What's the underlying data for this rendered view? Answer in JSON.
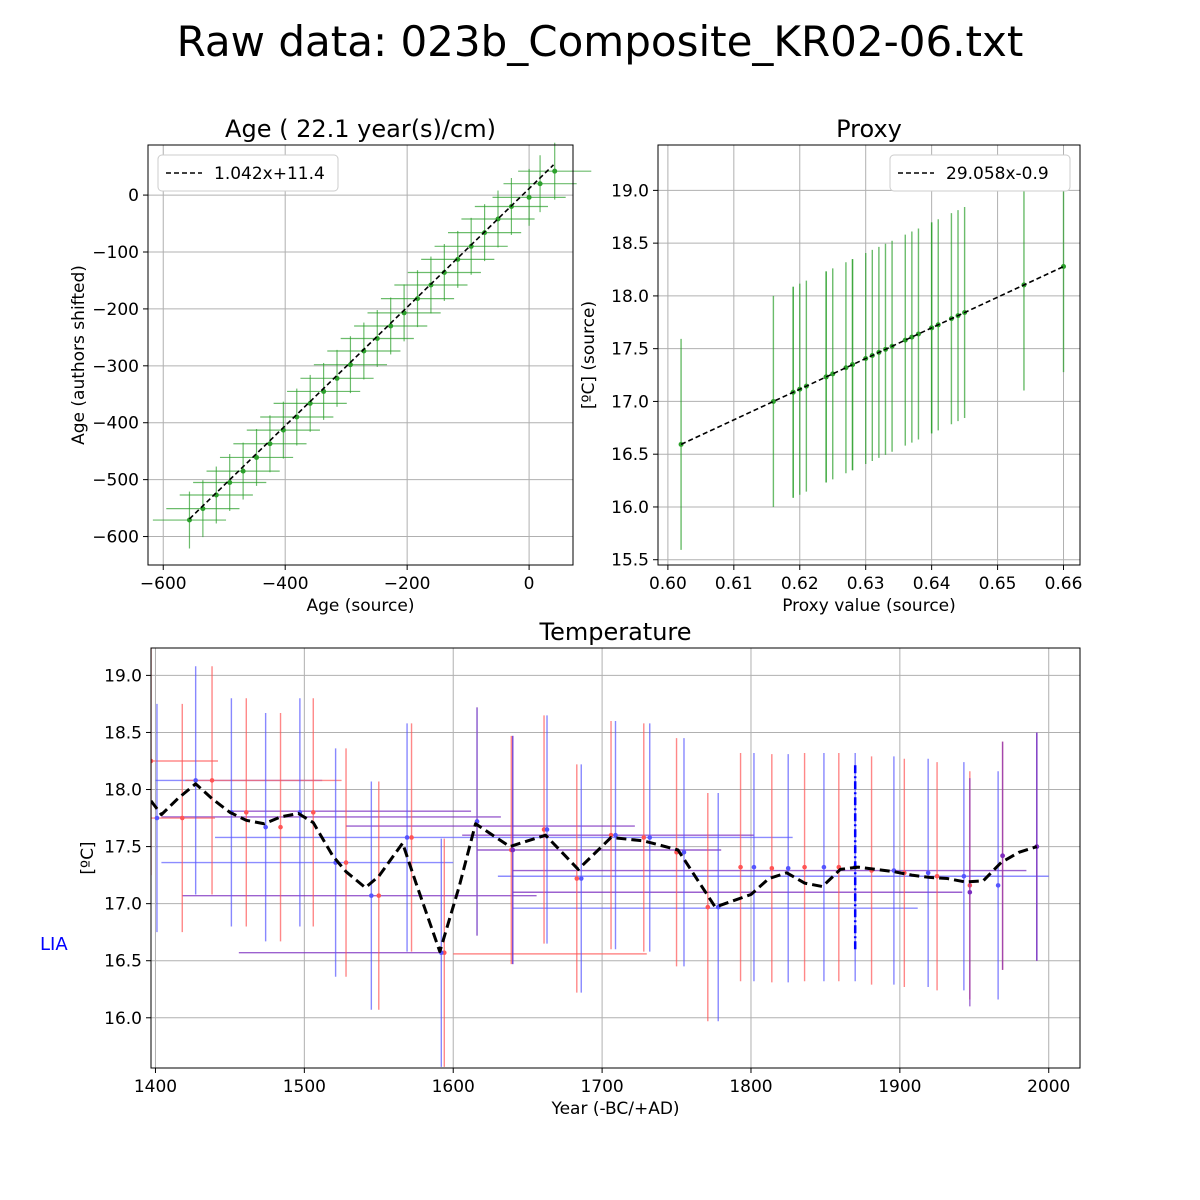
{
  "figure_title": "Raw data: 023b_Composite_KR02-06.txt",
  "side_label": "LIA",
  "colors": {
    "green": "#2ca02c",
    "red": "#ff6666",
    "blue": "#6666ff",
    "purple": "#7b2cbf",
    "dash": "#000000",
    "lia": "#0000ff"
  },
  "chart_data": [
    {
      "type": "scatter",
      "title": "Age ( 22.1 year(s)/cm)",
      "xlabel": "Age (source)",
      "ylabel": "Age (authors shifted)",
      "xlim": [
        -625,
        72
      ],
      "ylim": [
        -650,
        88
      ],
      "xticks": [
        -600,
        -400,
        -200,
        0
      ],
      "xtick_labels": [
        "−600",
        "−400",
        "−200",
        "0"
      ],
      "yticks": [
        -600,
        -500,
        -400,
        -300,
        -200,
        -100,
        0
      ],
      "ytick_labels": [
        "−600",
        "−500",
        "−400",
        "−300",
        "−200",
        "−100",
        "0"
      ],
      "legend": "1.042x+11.4",
      "legend_position": "top-left",
      "fit": {
        "slope": 1.042,
        "intercept": 11.4,
        "x_range": [
          -557,
          40
        ]
      },
      "error_x": 60,
      "error_y": 50,
      "points": {
        "x": [
          -557,
          -535,
          -513,
          -491,
          -469,
          -447,
          -425,
          -403,
          -381,
          -359,
          -337,
          -315,
          -293,
          -271,
          -249,
          -227,
          -205,
          -183,
          -161,
          -139,
          -117,
          -95,
          -73,
          -51,
          -29,
          0,
          18,
          42
        ],
        "y": [
          -571,
          -551,
          -527,
          -505,
          -485,
          -461,
          -437,
          -413,
          -390,
          -366,
          -345,
          -322,
          -298,
          -274,
          -252,
          -230,
          -207,
          -182,
          -158,
          -136,
          -113,
          -90,
          -66,
          -42,
          -20,
          -4,
          20,
          42
        ]
      }
    },
    {
      "type": "scatter",
      "title": "Proxy",
      "xlabel": "Proxy value (source)",
      "ylabel": "[ºC] (source)",
      "xlim": [
        0.5985,
        0.6625
      ],
      "ylim": [
        15.45,
        19.43
      ],
      "xticks": [
        0.6,
        0.61,
        0.62,
        0.63,
        0.64,
        0.65,
        0.66
      ],
      "xtick_labels": [
        "0.60",
        "0.61",
        "0.62",
        "0.63",
        "0.64",
        "0.65",
        "0.66"
      ],
      "yticks": [
        15.5,
        16.0,
        16.5,
        17.0,
        17.5,
        18.0,
        18.5,
        19.0
      ],
      "ytick_labels": [
        "15.5",
        "16.0",
        "16.5",
        "17.0",
        "17.5",
        "18.0",
        "18.5",
        "19.0"
      ],
      "legend": "29.058x-0.9",
      "legend_position": "top-right",
      "fit": {
        "slope": 29.058,
        "intercept": -0.9,
        "x_range": [
          0.602,
          0.66
        ]
      },
      "error_y": 1.0,
      "points": {
        "x": [
          0.602,
          0.616,
          0.619,
          0.619,
          0.62,
          0.621,
          0.624,
          0.624,
          0.625,
          0.627,
          0.628,
          0.628,
          0.63,
          0.631,
          0.632,
          0.633,
          0.634,
          0.636,
          0.637,
          0.638,
          0.64,
          0.64,
          0.641,
          0.643,
          0.644,
          0.645,
          0.654,
          0.66
        ]
      }
    },
    {
      "type": "line",
      "title": "Temperature",
      "xlabel": "Year (-BC/+AD)",
      "ylabel": "[ºC]",
      "xlim": [
        1397,
        2021
      ],
      "ylim": [
        15.56,
        19.24
      ],
      "xticks": [
        1400,
        1500,
        1600,
        1700,
        1800,
        1900,
        2000
      ],
      "xtick_labels": [
        "1400",
        "1500",
        "1600",
        "1700",
        "1800",
        "1900",
        "2000"
      ],
      "yticks": [
        16.0,
        16.5,
        17.0,
        17.5,
        18.0,
        18.5,
        19.0
      ],
      "ytick_labels": [
        "16.0",
        "16.5",
        "17.0",
        "17.5",
        "18.0",
        "18.5",
        "19.0"
      ],
      "error_y": 1.0,
      "error_x": 22,
      "line": {
        "x": [
          1397,
          1404,
          1415,
          1427,
          1438,
          1450,
          1461,
          1473,
          1484,
          1496,
          1506,
          1519,
          1528,
          1541,
          1550,
          1566,
          1575,
          1591,
          1604,
          1615,
          1638,
          1662,
          1684,
          1706,
          1728,
          1751,
          1776,
          1800,
          1812,
          1824,
          1836,
          1848,
          1860,
          1872,
          1884,
          1896,
          1908,
          1920,
          1932,
          1944,
          1956,
          1968,
          1980,
          1992
        ],
        "y": [
          17.9,
          17.78,
          17.92,
          18.05,
          17.92,
          17.8,
          17.73,
          17.7,
          17.76,
          17.79,
          17.71,
          17.42,
          17.28,
          17.14,
          17.24,
          17.53,
          17.18,
          16.58,
          17.15,
          17.7,
          17.5,
          17.6,
          17.3,
          17.58,
          17.55,
          17.47,
          16.97,
          17.08,
          17.22,
          17.27,
          17.18,
          17.15,
          17.3,
          17.32,
          17.3,
          17.28,
          17.25,
          17.23,
          17.22,
          17.19,
          17.2,
          17.36,
          17.45,
          17.5
        ]
      },
      "red_series": {
        "x": [
          1397,
          1418,
          1438,
          1461,
          1484,
          1506,
          1528,
          1550,
          1572,
          1594,
          1616,
          1639,
          1661,
          1683,
          1706,
          1728,
          1750,
          1771,
          1793,
          1814,
          1836,
          1859,
          1881,
          1903,
          1925,
          1947,
          1969,
          1992
        ],
        "y": [
          18.25,
          17.75,
          18.08,
          17.8,
          17.67,
          17.8,
          17.36,
          17.07,
          17.58,
          16.57,
          17.72,
          17.47,
          17.65,
          17.22,
          17.6,
          17.58,
          17.45,
          16.97,
          17.32,
          17.31,
          17.32,
          17.32,
          17.29,
          17.27,
          17.24,
          17.16,
          17.42,
          17.5
        ]
      },
      "blue_series": {
        "x": [
          1401,
          1427,
          1451,
          1474,
          1497,
          1521,
          1545,
          1569,
          1592,
          1616,
          1640,
          1663,
          1686,
          1709,
          1732,
          1755,
          1778,
          1802,
          1825,
          1849,
          1870,
          1896,
          1919,
          1943,
          1966,
          1992
        ],
        "y": [
          17.75,
          18.08,
          17.8,
          17.67,
          17.8,
          17.36,
          17.07,
          17.58,
          16.57,
          17.72,
          17.47,
          17.65,
          17.22,
          17.6,
          17.58,
          17.45,
          16.97,
          17.32,
          17.31,
          17.32,
          17.32,
          17.29,
          17.27,
          17.24,
          17.16,
          17.5
        ]
      },
      "purple_errorbars": {
        "x": [
          1640,
          1947,
          1969,
          1992
        ],
        "y": [
          17.47,
          17.1,
          17.42,
          17.5
        ]
      },
      "horizontal_bars": [
        {
          "y": 17.76,
          "x0": 1404,
          "x1": 1632,
          "color": "purple"
        },
        {
          "y": 17.81,
          "x0": 1451,
          "x1": 1612,
          "color": "purple"
        },
        {
          "y": 17.68,
          "x0": 1528,
          "x1": 1722,
          "color": "purple"
        },
        {
          "y": 17.6,
          "x0": 1606,
          "x1": 1802,
          "color": "purple"
        },
        {
          "y": 17.58,
          "x0": 1440,
          "x1": 1828,
          "color": "blue"
        },
        {
          "y": 17.47,
          "x0": 1616,
          "x1": 1780,
          "color": "purple"
        },
        {
          "y": 17.36,
          "x0": 1404,
          "x1": 1600,
          "color": "blue"
        },
        {
          "y": 17.29,
          "x0": 1640,
          "x1": 1985,
          "color": "purple"
        },
        {
          "y": 17.24,
          "x0": 1630,
          "x1": 2000,
          "color": "blue"
        },
        {
          "y": 17.1,
          "x0": 1640,
          "x1": 1942,
          "color": "purple"
        },
        {
          "y": 17.07,
          "x0": 1418,
          "x1": 1656,
          "color": "purple"
        },
        {
          "y": 16.96,
          "x0": 1640,
          "x1": 1912,
          "color": "blue"
        },
        {
          "y": 16.57,
          "x0": 1456,
          "x1": 1595,
          "color": "purple"
        },
        {
          "y": 16.56,
          "x0": 1600,
          "x1": 1730,
          "color": "red"
        },
        {
          "y": 18.08,
          "x0": 1400,
          "x1": 1512,
          "color": "blue"
        },
        {
          "y": 18.08,
          "x0": 1420,
          "x1": 1525,
          "color": "red"
        },
        {
          "y": 18.25,
          "x0": 1397,
          "x1": 1442,
          "color": "red"
        },
        {
          "y": 17.75,
          "x0": 1397,
          "x1": 1440,
          "color": "red"
        }
      ],
      "lia_marker": {
        "x": 1870,
        "y0": 16.6,
        "y1": 18.22
      }
    }
  ]
}
